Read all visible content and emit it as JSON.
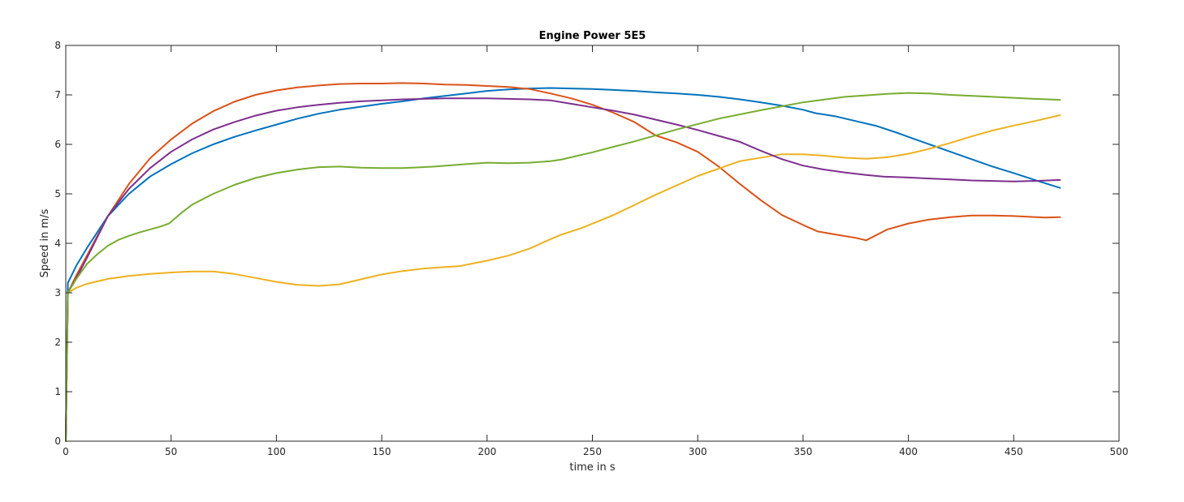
{
  "chart_data": {
    "type": "line",
    "title": "Engine Power 5E5",
    "xlabel": "time in s",
    "ylabel": "Speed in m/s",
    "xlim": [
      0,
      500
    ],
    "ylim": [
      0,
      8
    ],
    "xticks": [
      0,
      50,
      100,
      150,
      200,
      250,
      300,
      350,
      400,
      450,
      500
    ],
    "yticks": [
      0,
      1,
      2,
      3,
      4,
      5,
      6,
      7,
      8
    ],
    "grid": false,
    "legend": false,
    "series": [
      {
        "color": "#0072BD",
        "x": [
          0,
          1,
          5,
          10,
          20,
          30,
          40,
          50,
          60,
          70,
          80,
          90,
          100,
          110,
          120,
          130,
          140,
          150,
          160,
          170,
          180,
          190,
          200,
          210,
          220,
          230,
          240,
          250,
          260,
          270,
          280,
          290,
          300,
          310,
          320,
          330,
          340,
          350,
          356,
          365,
          375,
          385,
          395,
          400,
          410,
          420,
          430,
          440,
          450,
          460,
          472
        ],
        "y": [
          0,
          3.2,
          3.55,
          3.9,
          4.55,
          5.0,
          5.35,
          5.6,
          5.82,
          6.0,
          6.15,
          6.28,
          6.4,
          6.52,
          6.62,
          6.7,
          6.76,
          6.82,
          6.87,
          6.93,
          6.98,
          7.03,
          7.08,
          7.11,
          7.13,
          7.14,
          7.13,
          7.12,
          7.1,
          7.08,
          7.05,
          7.03,
          7.0,
          6.96,
          6.91,
          6.85,
          6.78,
          6.7,
          6.63,
          6.57,
          6.47,
          6.37,
          6.23,
          6.15,
          6.0,
          5.85,
          5.7,
          5.55,
          5.42,
          5.28,
          5.12
        ]
      },
      {
        "color": "#D95319",
        "x": [
          0,
          1,
          5,
          10,
          20,
          30,
          40,
          50,
          60,
          70,
          80,
          90,
          100,
          110,
          120,
          130,
          140,
          150,
          160,
          170,
          180,
          190,
          200,
          210,
          220,
          230,
          240,
          250,
          260,
          270,
          280,
          290,
          300,
          310,
          320,
          330,
          340,
          350,
          357,
          365,
          375,
          380,
          390,
          400,
          410,
          420,
          430,
          440,
          450,
          465,
          472
        ],
        "y": [
          0,
          3.0,
          3.35,
          3.75,
          4.55,
          5.2,
          5.72,
          6.1,
          6.42,
          6.67,
          6.86,
          7.0,
          7.09,
          7.15,
          7.19,
          7.22,
          7.23,
          7.23,
          7.24,
          7.23,
          7.21,
          7.2,
          7.18,
          7.16,
          7.12,
          7.03,
          6.93,
          6.8,
          6.64,
          6.45,
          6.18,
          6.04,
          5.85,
          5.55,
          5.2,
          4.87,
          4.57,
          4.37,
          4.24,
          4.18,
          4.11,
          4.06,
          4.28,
          4.4,
          4.48,
          4.53,
          4.56,
          4.56,
          4.55,
          4.52,
          4.53
        ]
      },
      {
        "color": "#EDB120",
        "x": [
          0,
          1,
          5,
          10,
          20,
          30,
          40,
          50,
          60,
          70,
          80,
          90,
          100,
          110,
          120,
          130,
          140,
          150,
          160,
          170,
          180,
          187,
          200,
          210,
          220,
          230,
          235,
          245,
          260,
          280,
          300,
          320,
          340,
          350,
          360,
          370,
          380,
          390,
          400,
          410,
          420,
          430,
          440,
          450,
          460,
          472
        ],
        "y": [
          0,
          3.0,
          3.1,
          3.18,
          3.28,
          3.34,
          3.38,
          3.41,
          3.43,
          3.43,
          3.38,
          3.3,
          3.22,
          3.16,
          3.14,
          3.17,
          3.27,
          3.37,
          3.44,
          3.49,
          3.52,
          3.54,
          3.65,
          3.75,
          3.89,
          4.08,
          4.17,
          4.31,
          4.57,
          4.98,
          5.36,
          5.66,
          5.8,
          5.8,
          5.77,
          5.73,
          5.71,
          5.74,
          5.81,
          5.91,
          6.03,
          6.16,
          6.28,
          6.38,
          6.47,
          6.59
        ]
      },
      {
        "color": "#7E2F8E",
        "x": [
          0,
          1,
          5,
          10,
          20,
          30,
          40,
          50,
          60,
          70,
          80,
          90,
          100,
          110,
          120,
          130,
          140,
          150,
          160,
          170,
          180,
          190,
          200,
          210,
          220,
          230,
          240,
          250,
          260,
          270,
          280,
          290,
          300,
          310,
          320,
          330,
          340,
          350,
          360,
          370,
          380,
          388,
          400,
          410,
          420,
          430,
          440,
          450,
          460,
          472
        ],
        "y": [
          0,
          3.0,
          3.3,
          3.7,
          4.55,
          5.1,
          5.52,
          5.85,
          6.1,
          6.3,
          6.45,
          6.58,
          6.68,
          6.75,
          6.8,
          6.84,
          6.87,
          6.89,
          6.91,
          6.92,
          6.93,
          6.93,
          6.93,
          6.92,
          6.91,
          6.89,
          6.82,
          6.75,
          6.68,
          6.6,
          6.5,
          6.4,
          6.29,
          6.17,
          6.05,
          5.87,
          5.7,
          5.57,
          5.49,
          5.43,
          5.38,
          5.35,
          5.33,
          5.31,
          5.29,
          5.27,
          5.26,
          5.25,
          5.26,
          5.28
        ]
      },
      {
        "color": "#77AC30",
        "x": [
          0,
          1,
          5,
          10,
          15,
          20,
          25,
          30,
          35,
          40,
          45,
          49,
          55,
          60,
          70,
          80,
          90,
          100,
          110,
          120,
          130,
          140,
          150,
          160,
          175,
          190,
          200,
          210,
          220,
          230,
          235,
          250,
          270,
          290,
          310,
          330,
          350,
          370,
          390,
          400,
          410,
          420,
          440,
          460,
          472
        ],
        "y": [
          0,
          3.0,
          3.28,
          3.58,
          3.78,
          3.95,
          4.07,
          4.15,
          4.22,
          4.28,
          4.34,
          4.4,
          4.62,
          4.78,
          5.0,
          5.18,
          5.32,
          5.42,
          5.49,
          5.54,
          5.55,
          5.53,
          5.52,
          5.52,
          5.55,
          5.6,
          5.63,
          5.62,
          5.63,
          5.66,
          5.69,
          5.84,
          6.06,
          6.3,
          6.52,
          6.69,
          6.85,
          6.96,
          7.02,
          7.04,
          7.03,
          7.0,
          6.96,
          6.92,
          6.9
        ]
      }
    ]
  }
}
